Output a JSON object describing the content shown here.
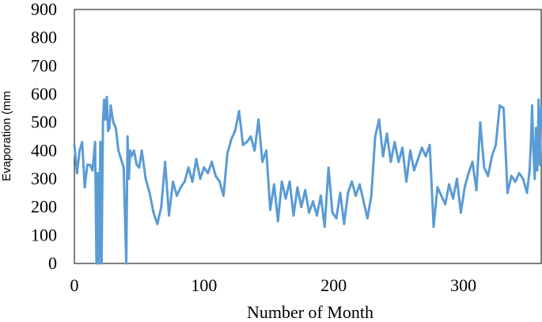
{
  "chart_data": {
    "type": "line",
    "title": "",
    "xlabel": "Number of Month",
    "ylabel": "Evaporation (mm",
    "xlim": [
      0,
      360
    ],
    "ylim": [
      0,
      900
    ],
    "xticks": [
      0,
      100,
      200,
      300
    ],
    "yticks": [
      0,
      100,
      200,
      300,
      400,
      500,
      600,
      700,
      800,
      900
    ],
    "grid": false,
    "legend": "none",
    "series": [
      {
        "color": "#5B9BD5",
        "x": [
          0,
          2,
          4,
          6,
          8,
          10,
          12,
          14,
          16,
          17,
          18,
          19,
          20,
          21,
          22,
          23,
          24,
          25,
          26,
          27,
          28,
          30,
          32,
          34,
          36,
          38,
          40,
          41,
          42,
          43,
          44,
          46,
          48,
          50,
          52,
          55,
          58,
          61,
          64,
          67,
          70,
          73,
          76,
          79,
          82,
          85,
          88,
          91,
          94,
          97,
          100,
          103,
          106,
          109,
          112,
          115,
          118,
          121,
          124,
          127,
          130,
          133,
          136,
          139,
          142,
          145,
          148,
          151,
          154,
          157,
          160,
          163,
          166,
          169,
          172,
          175,
          178,
          181,
          184,
          187,
          190,
          193,
          196,
          199,
          202,
          205,
          208,
          211,
          214,
          217,
          220,
          223,
          226,
          229,
          232,
          235,
          238,
          241,
          244,
          247,
          250,
          253,
          256,
          259,
          262,
          265,
          268,
          271,
          274,
          277,
          280,
          283,
          286,
          289,
          292,
          295,
          298,
          301,
          304,
          307,
          310,
          313,
          316,
          319,
          322,
          325,
          328,
          331,
          334,
          337,
          340,
          343,
          346,
          349,
          351,
          352,
          353,
          354,
          355,
          356,
          357,
          358,
          359,
          360
        ],
        "y": [
          420,
          320,
          400,
          430,
          270,
          350,
          350,
          330,
          430,
          0,
          320,
          0,
          430,
          0,
          500,
          580,
          510,
          590,
          470,
          480,
          560,
          500,
          480,
          400,
          370,
          340,
          0,
          450,
          300,
          400,
          380,
          400,
          350,
          340,
          400,
          300,
          250,
          180,
          140,
          200,
          360,
          170,
          290,
          240,
          270,
          290,
          340,
          290,
          370,
          300,
          340,
          320,
          360,
          310,
          290,
          240,
          390,
          440,
          470,
          540,
          420,
          430,
          450,
          400,
          510,
          360,
          400,
          190,
          280,
          150,
          290,
          230,
          290,
          170,
          270,
          200,
          260,
          180,
          220,
          170,
          240,
          130,
          340,
          180,
          160,
          250,
          140,
          250,
          290,
          240,
          280,
          220,
          160,
          240,
          450,
          510,
          380,
          460,
          360,
          430,
          360,
          410,
          290,
          400,
          330,
          370,
          410,
          380,
          420,
          130,
          270,
          240,
          210,
          280,
          230,
          300,
          180,
          270,
          320,
          360,
          260,
          500,
          340,
          310,
          380,
          420,
          560,
          550,
          250,
          310,
          290,
          320,
          300,
          250,
          330,
          420,
          560,
          400,
          300,
          480,
          330,
          580,
          350,
          550
        ]
      }
    ]
  }
}
